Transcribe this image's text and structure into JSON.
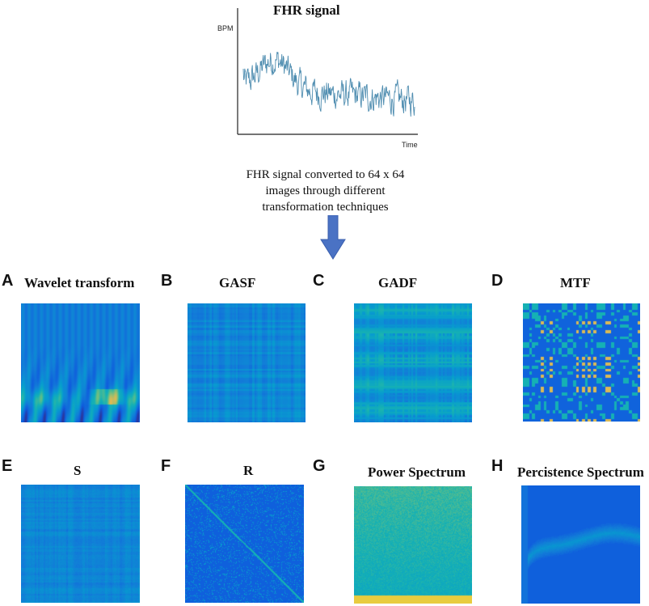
{
  "top_chart": {
    "title": "FHR signal",
    "ylabel": "BPM",
    "xlabel": "Time",
    "line_color": "#4f8db0"
  },
  "caption": {
    "line1": "FHR signal converted to 64 x 64",
    "line2": "images through different",
    "line3": "transformation techniques"
  },
  "arrow_color": "#4a72c4",
  "panels": [
    {
      "letter": "A",
      "title": "Wavelet transform"
    },
    {
      "letter": "B",
      "title": "GASF"
    },
    {
      "letter": "C",
      "title": "GADF"
    },
    {
      "letter": "D",
      "title": "MTF"
    },
    {
      "letter": "E",
      "title": "S"
    },
    {
      "letter": "F",
      "title": "R"
    },
    {
      "letter": "G",
      "title": "Power Spectrum"
    },
    {
      "letter": "H",
      "title": "Percistence Spectrum"
    }
  ]
}
